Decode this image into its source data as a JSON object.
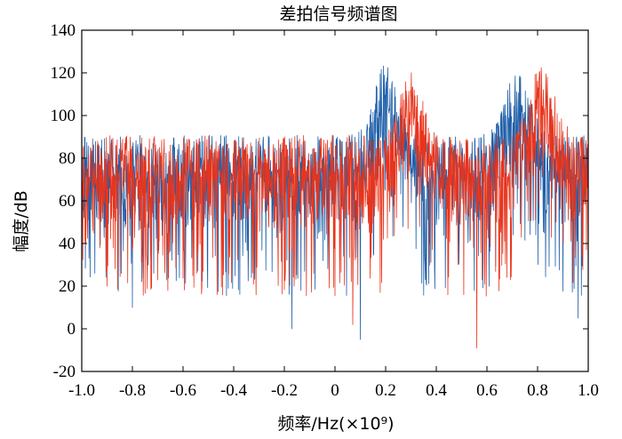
{
  "chart_data": {
    "type": "line",
    "title": "差拍信号频谱图",
    "xlabel": "频率/Hz(×10⁹)",
    "ylabel": "幅度/dB",
    "xlim": [
      -1.0,
      1.0
    ],
    "ylim": [
      -20,
      140
    ],
    "x_ticks": [
      "-1.0",
      "-0.8",
      "-0.6",
      "-0.4",
      "-0.2",
      "0",
      "0.2",
      "0.4",
      "0.6",
      "0.8",
      "1.0"
    ],
    "x_tick_values": [
      -1.0,
      -0.8,
      -0.6,
      -0.4,
      -0.2,
      0,
      0.2,
      0.4,
      0.6,
      0.8,
      1.0
    ],
    "y_ticks": [
      "-20",
      "0",
      "20",
      "40",
      "60",
      "80",
      "100",
      "120",
      "140"
    ],
    "y_tick_values": [
      -20,
      0,
      20,
      40,
      60,
      80,
      100,
      120,
      140
    ],
    "grid": false,
    "legend": "none",
    "series": [
      {
        "name": "blue",
        "color": "#1f5fa8",
        "noise_floor_db": 75,
        "noise_spread_db": 25,
        "min_db": -5,
        "peaks": [
          {
            "center": 0.2,
            "width": 0.06,
            "height_db": 110
          },
          {
            "center": 0.72,
            "width": 0.07,
            "height_db": 105
          }
        ],
        "deep_dips": [
          {
            "x": -0.8,
            "y": 10
          },
          {
            "x": -0.17,
            "y": 0
          },
          {
            "x": 0.1,
            "y": -5
          },
          {
            "x": 0.55,
            "y": 18
          },
          {
            "x": 0.96,
            "y": 5
          }
        ]
      },
      {
        "name": "red",
        "color": "#e8341c",
        "noise_floor_db": 75,
        "noise_spread_db": 25,
        "min_db": -9,
        "peaks": [
          {
            "center": 0.3,
            "width": 0.06,
            "height_db": 105
          },
          {
            "center": 0.82,
            "width": 0.07,
            "height_db": 110
          }
        ],
        "deep_dips": [
          {
            "x": -0.9,
            "y": 20
          },
          {
            "x": 0.07,
            "y": 2
          },
          {
            "x": 0.56,
            "y": -9
          }
        ]
      }
    ]
  }
}
